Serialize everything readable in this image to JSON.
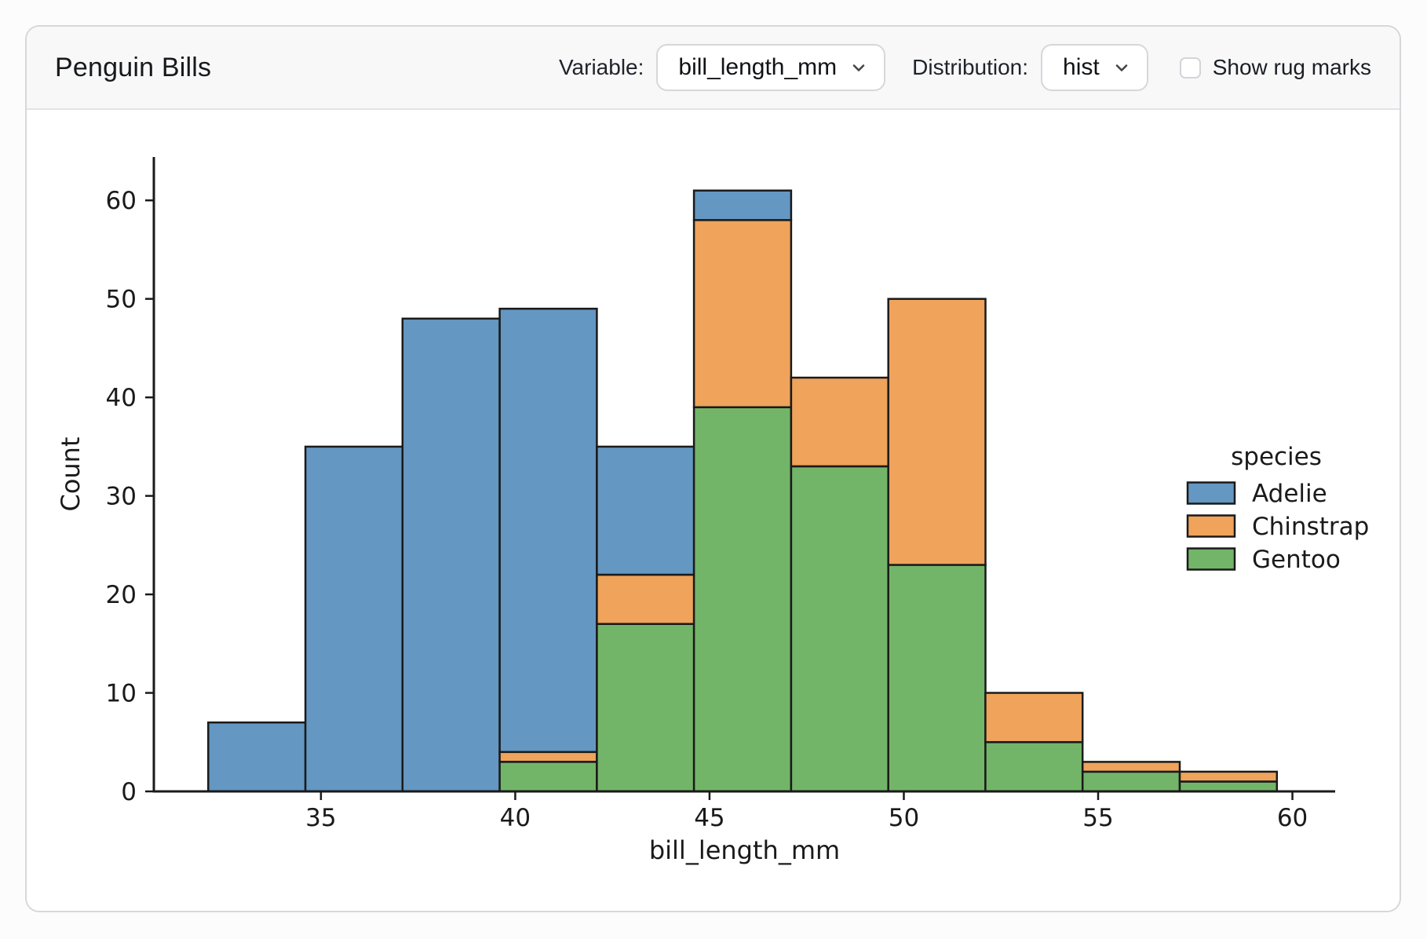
{
  "header": {
    "title": "Penguin Bills",
    "variable_label": "Variable:",
    "variable_value": "bill_length_mm",
    "distribution_label": "Distribution:",
    "distribution_value": "hist",
    "rug_label": "Show rug marks",
    "rug_checked": false
  },
  "icons": {
    "variable_chevron": "chevron-down",
    "distribution_chevron": "chevron-down"
  },
  "colors": {
    "adelie": "#6497c2",
    "chinstrap": "#efa35b",
    "gentoo": "#73b568",
    "edge": "#1a1a1a",
    "header_bg": "#f8f8f9",
    "card_border": "#d7d7db"
  },
  "chart_data": {
    "type": "bar",
    "subtype": "stacked_histogram",
    "xlabel": "bill_length_mm",
    "ylabel": "Count",
    "legend_title": "species",
    "legend_position": "right",
    "grid": false,
    "xlim": [
      30.7,
      61.1
    ],
    "ylim": [
      0,
      64.4
    ],
    "xticks": [
      35,
      40,
      45,
      50,
      55,
      60
    ],
    "yticks": [
      0,
      10,
      20,
      30,
      40,
      50,
      60
    ],
    "bin_edges": [
      32.1,
      34.6,
      37.1,
      39.6,
      42.1,
      44.6,
      47.1,
      49.6,
      52.1,
      54.6,
      57.1,
      59.6
    ],
    "edge_color": "#1a1a1a",
    "series": [
      {
        "name": "Gentoo",
        "color": "#73b568",
        "values": [
          0,
          0,
          0,
          3,
          17,
          39,
          33,
          23,
          5,
          2,
          1
        ]
      },
      {
        "name": "Chinstrap",
        "color": "#efa35b",
        "values": [
          0,
          0,
          0,
          1,
          5,
          19,
          9,
          27,
          5,
          1,
          1
        ]
      },
      {
        "name": "Adelie",
        "color": "#6497c2",
        "values": [
          7,
          35,
          48,
          45,
          13,
          3,
          0,
          0,
          0,
          0,
          0
        ]
      }
    ],
    "stack_order_bottom_to_top": [
      "Gentoo",
      "Chinstrap",
      "Adelie"
    ],
    "legend_order": [
      "Adelie",
      "Chinstrap",
      "Gentoo"
    ],
    "bin_totals": [
      7,
      35,
      48,
      49,
      35,
      61,
      42,
      50,
      10,
      3,
      2
    ]
  }
}
